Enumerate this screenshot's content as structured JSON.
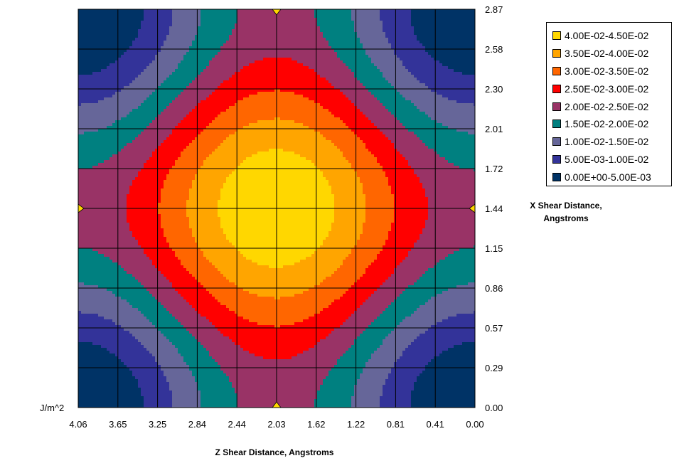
{
  "chart_data": {
    "type": "heatmap",
    "subtype": "contour",
    "zunit": "J/m^2",
    "xlabel": "Z Shear Distance, Angstroms",
    "ylabel": "X Shear Distance, Angstroms",
    "ylabel_line1": "X Shear Distance,",
    "ylabel_line2": "Angstroms",
    "x_ticks": [
      "4.06",
      "3.65",
      "3.25",
      "2.84",
      "2.44",
      "2.03",
      "1.62",
      "1.22",
      "0.81",
      "0.41",
      "0.00"
    ],
    "y_ticks": [
      "2.87",
      "2.58",
      "2.30",
      "2.01",
      "1.72",
      "1.44",
      "1.15",
      "0.86",
      "0.57",
      "0.29",
      "0.00"
    ],
    "x_range": [
      4.06,
      0.0
    ],
    "y_range": [
      0.0,
      2.87
    ],
    "grid": true,
    "legend_position": "top-right",
    "levels": [
      {
        "label": "4.00E-02-4.50E-02",
        "color": "#FFD700"
      },
      {
        "label": "3.50E-02-4.00E-02",
        "color": "#FFA500"
      },
      {
        "label": "3.00E-02-3.50E-02",
        "color": "#FF6600"
      },
      {
        "label": "2.50E-02-3.00E-02",
        "color": "#FF0000"
      },
      {
        "label": "2.00E-02-2.50E-02",
        "color": "#993366"
      },
      {
        "label": "1.50E-02-2.00E-02",
        "color": "#008080"
      },
      {
        "label": "1.00E-02-1.50E-02",
        "color": "#666699"
      },
      {
        "label": "5.00E-03-1.00E-02",
        "color": "#333399"
      },
      {
        "label": "0.00E+00-5.00E-03",
        "color": "#003366"
      }
    ],
    "z_max": 0.045
  }
}
